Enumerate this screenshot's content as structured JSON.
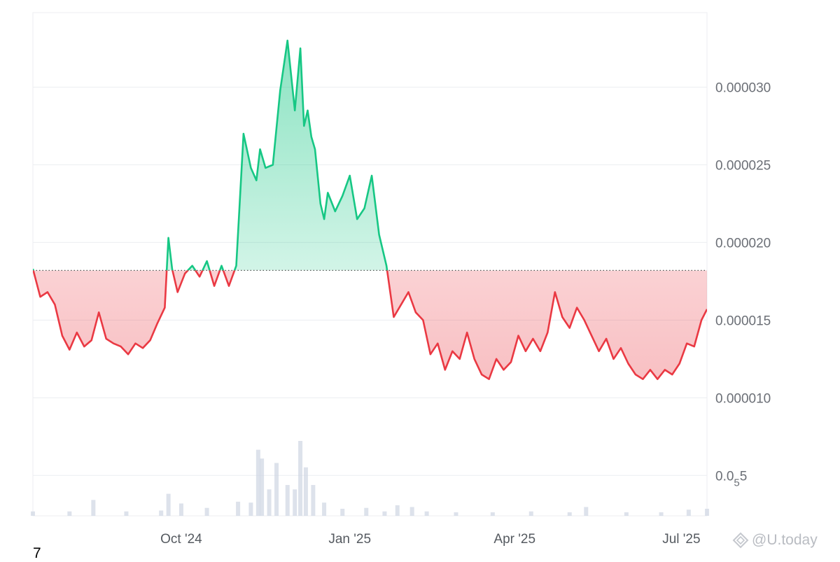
{
  "chart_data": {
    "type": "area",
    "title": "",
    "xlabel": "",
    "ylabel": "",
    "x_ticks": [
      "Oct '24",
      "Jan '25",
      "Apr '25",
      "Jul '25"
    ],
    "y_ticks": [
      {
        "value": 3e-05,
        "label": "0.000030"
      },
      {
        "value": 2.5e-05,
        "label": "0.000025"
      },
      {
        "value": 2e-05,
        "label": "0.000020"
      },
      {
        "value": 1.5e-05,
        "label": "0.000015"
      },
      {
        "value": 1e-05,
        "label": "0.000010"
      },
      {
        "value": 5e-06,
        "label": "0.0",
        "sub": "5",
        "suffix": "5"
      }
    ],
    "ylim": [
      2.4e-06,
      3.48e-05
    ],
    "xlim": [
      "2024-07-12",
      "2025-07-15"
    ],
    "grid": "horizontal",
    "baseline": {
      "value": 1.82e-05,
      "style": "dotted"
    },
    "colors": {
      "above": "#16c784",
      "below": "#ea3943",
      "volume": "#cfd6e2",
      "grid": "#eceef1"
    },
    "series": [
      {
        "x": [
          "2024-07-12",
          "2024-07-16",
          "2024-07-20",
          "2024-07-24",
          "2024-07-28",
          "2024-08-01",
          "2024-08-05",
          "2024-08-09",
          "2024-08-13",
          "2024-08-17",
          "2024-08-21",
          "2024-08-25",
          "2024-08-29",
          "2024-09-02",
          "2024-09-06",
          "2024-09-10",
          "2024-09-14",
          "2024-09-18",
          "2024-09-22",
          "2024-09-24",
          "2024-09-26",
          "2024-09-29",
          "2024-10-03",
          "2024-10-07",
          "2024-10-11",
          "2024-10-15",
          "2024-10-19",
          "2024-10-23",
          "2024-10-27",
          "2024-10-31",
          "2024-11-04",
          "2024-11-08",
          "2024-11-11",
          "2024-11-13",
          "2024-11-16",
          "2024-11-20",
          "2024-11-24",
          "2024-11-28",
          "2024-12-02",
          "2024-12-05",
          "2024-12-07",
          "2024-12-09",
          "2024-12-11",
          "2024-12-13",
          "2024-12-16",
          "2024-12-18",
          "2024-12-20",
          "2024-12-24",
          "2024-12-28",
          "2025-01-01",
          "2025-01-05",
          "2025-01-09",
          "2025-01-13",
          "2025-01-17",
          "2025-01-21",
          "2025-01-25",
          "2025-01-29",
          "2025-02-02",
          "2025-02-06",
          "2025-02-10",
          "2025-02-14",
          "2025-02-18",
          "2025-02-22",
          "2025-02-26",
          "2025-03-02",
          "2025-03-06",
          "2025-03-10",
          "2025-03-14",
          "2025-03-18",
          "2025-03-22",
          "2025-03-26",
          "2025-03-30",
          "2025-04-03",
          "2025-04-07",
          "2025-04-11",
          "2025-04-15",
          "2025-04-19",
          "2025-04-23",
          "2025-04-27",
          "2025-05-01",
          "2025-05-05",
          "2025-05-09",
          "2025-05-13",
          "2025-05-17",
          "2025-05-21",
          "2025-05-25",
          "2025-05-29",
          "2025-06-02",
          "2025-06-06",
          "2025-06-10",
          "2025-06-14",
          "2025-06-18",
          "2025-06-22",
          "2025-06-26",
          "2025-06-30",
          "2025-07-04",
          "2025-07-08",
          "2025-07-12",
          "2025-07-15"
        ],
        "values": [
          1.83e-05,
          1.65e-05,
          1.68e-05,
          1.6e-05,
          1.4e-05,
          1.31e-05,
          1.42e-05,
          1.33e-05,
          1.37e-05,
          1.55e-05,
          1.38e-05,
          1.35e-05,
          1.33e-05,
          1.28e-05,
          1.35e-05,
          1.32e-05,
          1.37e-05,
          1.48e-05,
          1.58e-05,
          2.03e-05,
          1.83e-05,
          1.68e-05,
          1.8e-05,
          1.85e-05,
          1.78e-05,
          1.88e-05,
          1.72e-05,
          1.85e-05,
          1.72e-05,
          1.85e-05,
          2.7e-05,
          2.48e-05,
          2.4e-05,
          2.6e-05,
          2.48e-05,
          2.5e-05,
          2.98e-05,
          3.3e-05,
          2.85e-05,
          3.25e-05,
          2.75e-05,
          2.85e-05,
          2.68e-05,
          2.6e-05,
          2.25e-05,
          2.15e-05,
          2.32e-05,
          2.2e-05,
          2.3e-05,
          2.43e-05,
          2.15e-05,
          2.22e-05,
          2.43e-05,
          2.05e-05,
          1.85e-05,
          1.52e-05,
          1.6e-05,
          1.68e-05,
          1.55e-05,
          1.5e-05,
          1.28e-05,
          1.35e-05,
          1.18e-05,
          1.3e-05,
          1.25e-05,
          1.42e-05,
          1.25e-05,
          1.15e-05,
          1.12e-05,
          1.25e-05,
          1.18e-05,
          1.23e-05,
          1.4e-05,
          1.3e-05,
          1.38e-05,
          1.3e-05,
          1.42e-05,
          1.68e-05,
          1.52e-05,
          1.45e-05,
          1.58e-05,
          1.5e-05,
          1.4e-05,
          1.3e-05,
          1.38e-05,
          1.25e-05,
          1.32e-05,
          1.22e-05,
          1.15e-05,
          1.12e-05,
          1.18e-05,
          1.12e-05,
          1.18e-05,
          1.15e-05,
          1.22e-05,
          1.35e-05,
          1.33e-05,
          1.5e-05,
          1.57e-05
        ]
      }
    ],
    "volume": {
      "x": [
        "2024-07-12",
        "2024-08-01",
        "2024-08-14",
        "2024-09-01",
        "2024-09-20",
        "2024-09-24",
        "2024-10-01",
        "2024-10-15",
        "2024-11-01",
        "2024-11-08",
        "2024-11-12",
        "2024-11-14",
        "2024-11-18",
        "2024-11-22",
        "2024-11-28",
        "2024-12-02",
        "2024-12-05",
        "2024-12-08",
        "2024-12-12",
        "2024-12-18",
        "2024-12-28",
        "2025-01-10",
        "2025-01-20",
        "2025-01-27",
        "2025-02-04",
        "2025-02-12",
        "2025-02-28",
        "2025-03-20",
        "2025-04-10",
        "2025-05-01",
        "2025-05-10",
        "2025-06-01",
        "2025-06-20",
        "2025-07-05",
        "2025-07-15"
      ],
      "values": [
        0.5,
        0.5,
        1.8,
        0.5,
        0.6,
        2.5,
        1.4,
        0.9,
        1.6,
        1.5,
        7.5,
        6.5,
        3.0,
        6.0,
        3.5,
        3.0,
        8.5,
        5.5,
        3.5,
        1.5,
        0.8,
        0.9,
        0.5,
        1.2,
        1.0,
        0.5,
        0.4,
        0.4,
        0.5,
        0.4,
        1.0,
        0.4,
        0.4,
        0.7,
        0.8
      ]
    }
  },
  "page": {
    "corner_text": "7",
    "watermark": "@U.today",
    "watermark_icon": "diamond-logo-icon"
  }
}
